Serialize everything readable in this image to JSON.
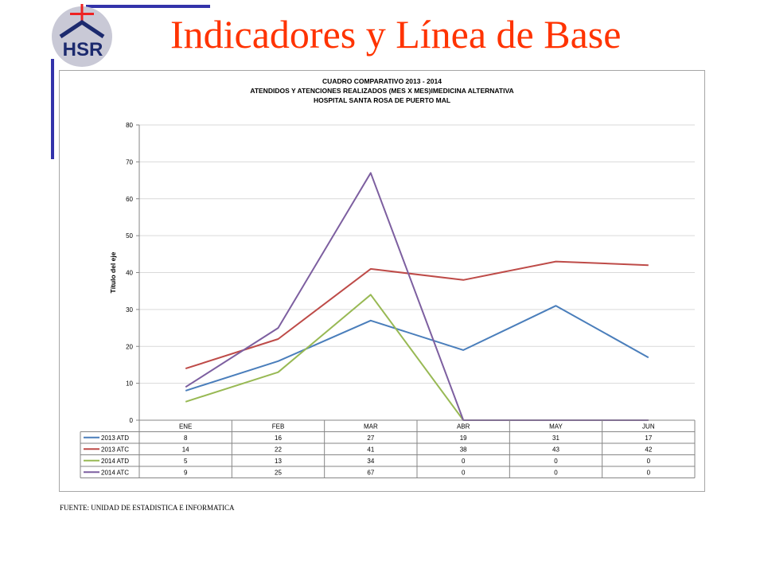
{
  "slide": {
    "title": "Indicadores y Línea de Base",
    "logo_text": "HSR",
    "source": "FUENTE: UNIDAD DE ESTADISTICA E INFORMATICA"
  },
  "chart_data": {
    "type": "line",
    "title": [
      "CUADRO COMPARATIVO 2013 - 2014",
      "ATENDIDOS Y ATENCIONES  REALIZADOS (MES X MES)IMEDICINA ALTERNATIVA",
      "HOSPITAL SANTA ROSA DE PUERTO MAL"
    ],
    "xlabel": "",
    "ylabel": "Título del eje",
    "ylim": [
      0,
      80
    ],
    "yticks": [
      0,
      10,
      20,
      30,
      40,
      50,
      60,
      70,
      80
    ],
    "grid": true,
    "legend": "data-table",
    "categories": [
      "ENE",
      "FEB",
      "MAR",
      "ABR",
      "MAY",
      "JUN"
    ],
    "series": [
      {
        "name": "2013 ATD",
        "color": "#4a7ebb",
        "values": [
          8,
          16,
          27,
          19,
          31,
          17
        ]
      },
      {
        "name": "2013 ATC",
        "color": "#be4b48",
        "values": [
          14,
          22,
          41,
          38,
          43,
          42
        ]
      },
      {
        "name": "2014 ATD",
        "color": "#98b954",
        "values": [
          5,
          13,
          34,
          0,
          0,
          0
        ]
      },
      {
        "name": "2014 ATC",
        "color": "#7d5fa0",
        "values": [
          9,
          25,
          67,
          0,
          0,
          0
        ]
      }
    ]
  }
}
